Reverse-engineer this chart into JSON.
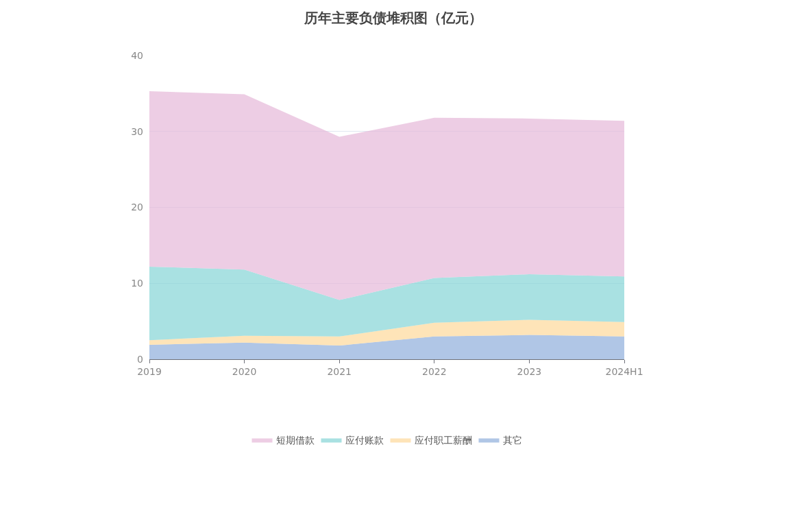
{
  "chart_data": {
    "type": "area",
    "title": "历年主要负债堆积图（亿元）",
    "categories": [
      "2019",
      "2020",
      "2021",
      "2022",
      "2023",
      "2024H1"
    ],
    "stacked": true,
    "ylim": [
      0,
      40
    ],
    "yticks": [
      0,
      10,
      20,
      30,
      40
    ],
    "grid": "y",
    "legend": "bottom",
    "series": [
      {
        "name": "其它",
        "color": "#8eaedb",
        "values": [
          1.9,
          2.2,
          1.8,
          3.0,
          3.2,
          3.0
        ]
      },
      {
        "name": "应付职工薪酬",
        "color": "#fdd89a",
        "values": [
          0.6,
          0.9,
          1.2,
          1.8,
          2.0,
          1.9
        ]
      },
      {
        "name": "应付账款",
        "color": "#84d4d6",
        "values": [
          9.7,
          8.7,
          4.8,
          5.9,
          6.0,
          6.0
        ]
      },
      {
        "name": "短期借款",
        "color": "#e6b8d8",
        "values": [
          23.1,
          23.1,
          21.5,
          21.1,
          20.5,
          20.5
        ]
      }
    ]
  }
}
